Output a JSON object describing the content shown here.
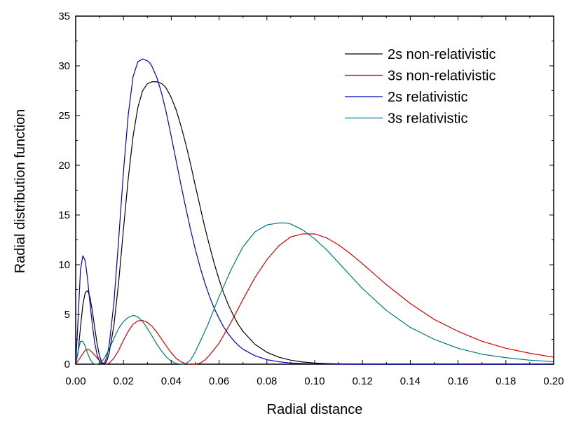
{
  "chart_data": {
    "type": "line",
    "title": "",
    "xlabel": "Radial distance",
    "ylabel": "Radial distribution function",
    "xlim": [
      0.0,
      0.2
    ],
    "ylim": [
      0,
      35
    ],
    "grid": false,
    "legend_position": "top-right",
    "x_ticks": [
      "0.00",
      "0.02",
      "0.04",
      "0.06",
      "0.08",
      "0.10",
      "0.12",
      "0.14",
      "0.16",
      "0.18",
      "0.20"
    ],
    "y_ticks": [
      "0",
      "5",
      "10",
      "15",
      "20",
      "25",
      "30",
      "35"
    ],
    "series": [
      {
        "name": "2s non-relativistic",
        "color": "#000000",
        "x": [
          0.0,
          0.001,
          0.002,
          0.003,
          0.004,
          0.005,
          0.006,
          0.007,
          0.008,
          0.009,
          0.01,
          0.011,
          0.012,
          0.013,
          0.014,
          0.016,
          0.018,
          0.02,
          0.022,
          0.024,
          0.026,
          0.028,
          0.03,
          0.032,
          0.034,
          0.036,
          0.037,
          0.038,
          0.04,
          0.042,
          0.044,
          0.046,
          0.048,
          0.05,
          0.052,
          0.054,
          0.056,
          0.058,
          0.06,
          0.062,
          0.064,
          0.066,
          0.068,
          0.07,
          0.075,
          0.08,
          0.085,
          0.09,
          0.095,
          0.1,
          0.105,
          0.11,
          0.115,
          0.12,
          0.13,
          0.14,
          0.16,
          0.18,
          0.2
        ],
        "y": [
          0.0,
          1.2,
          3.7,
          6.0,
          7.2,
          7.4,
          6.7,
          5.3,
          3.6,
          2.0,
          0.8,
          0.15,
          0.0,
          0.3,
          1.1,
          3.9,
          8.3,
          13.6,
          18.7,
          22.9,
          25.8,
          27.5,
          28.2,
          28.4,
          28.4,
          28.2,
          28.0,
          27.7,
          26.8,
          25.6,
          24.0,
          22.2,
          20.2,
          18.0,
          15.9,
          13.8,
          11.9,
          10.1,
          8.5,
          7.1,
          5.9,
          4.9,
          4.0,
          3.3,
          2.0,
          1.2,
          0.7,
          0.4,
          0.22,
          0.12,
          0.06,
          0.03,
          0.015,
          0.008,
          0.0,
          0.0,
          0.0,
          0.0,
          0.0
        ]
      },
      {
        "name": "3s non-relativistic",
        "color": "#d40000",
        "x": [
          0.0,
          0.002,
          0.004,
          0.005,
          0.006,
          0.008,
          0.01,
          0.012,
          0.013,
          0.014,
          0.016,
          0.018,
          0.02,
          0.022,
          0.024,
          0.026,
          0.028,
          0.03,
          0.032,
          0.034,
          0.036,
          0.038,
          0.04,
          0.042,
          0.044,
          0.046,
          0.048,
          0.05,
          0.052,
          0.054,
          0.056,
          0.06,
          0.065,
          0.07,
          0.075,
          0.08,
          0.085,
          0.09,
          0.095,
          0.1,
          0.105,
          0.11,
          0.115,
          0.12,
          0.13,
          0.14,
          0.15,
          0.16,
          0.17,
          0.18,
          0.19,
          0.2
        ],
        "y": [
          0.0,
          0.7,
          1.4,
          1.5,
          1.4,
          0.9,
          0.35,
          0.05,
          0.0,
          0.1,
          0.6,
          1.4,
          2.4,
          3.3,
          4.0,
          4.35,
          4.4,
          4.2,
          3.8,
          3.2,
          2.5,
          1.8,
          1.15,
          0.6,
          0.25,
          0.05,
          0.0,
          0.0,
          0.1,
          0.4,
          0.9,
          2.1,
          4.2,
          6.5,
          8.7,
          10.5,
          11.9,
          12.8,
          13.1,
          13.1,
          12.7,
          12.0,
          11.1,
          10.1,
          8.0,
          6.1,
          4.5,
          3.3,
          2.3,
          1.6,
          1.1,
          0.7
        ]
      },
      {
        "name": "2s relativistic",
        "color": "#0000c0",
        "x": [
          0.0,
          0.001,
          0.002,
          0.003,
          0.004,
          0.005,
          0.006,
          0.007,
          0.008,
          0.009,
          0.01,
          0.011,
          0.012,
          0.013,
          0.014,
          0.016,
          0.018,
          0.02,
          0.022,
          0.024,
          0.026,
          0.028,
          0.03,
          0.031,
          0.032,
          0.034,
          0.036,
          0.038,
          0.04,
          0.042,
          0.044,
          0.046,
          0.048,
          0.05,
          0.052,
          0.054,
          0.056,
          0.058,
          0.06,
          0.062,
          0.064,
          0.066,
          0.068,
          0.07,
          0.075,
          0.08,
          0.085,
          0.09,
          0.095,
          0.1,
          0.11,
          0.12,
          0.14,
          0.16,
          0.2
        ],
        "y": [
          0.0,
          4.5,
          9.5,
          10.9,
          10.4,
          8.5,
          6.1,
          3.9,
          2.1,
          0.9,
          0.25,
          0.0,
          0.1,
          0.7,
          1.9,
          6.2,
          12.6,
          19.4,
          25.1,
          28.9,
          30.4,
          30.7,
          30.5,
          30.3,
          29.9,
          28.8,
          27.2,
          25.2,
          22.9,
          20.5,
          18.1,
          15.8,
          13.6,
          11.6,
          9.8,
          8.2,
          6.8,
          5.6,
          4.6,
          3.7,
          3.0,
          2.4,
          1.9,
          1.5,
          0.85,
          0.45,
          0.24,
          0.12,
          0.06,
          0.03,
          0.008,
          0.0,
          0.0,
          0.0,
          0.0
        ]
      },
      {
        "name": "3s relativistic",
        "color": "#007878",
        "x": [
          0.0,
          0.001,
          0.002,
          0.003,
          0.004,
          0.005,
          0.006,
          0.007,
          0.008,
          0.009,
          0.01,
          0.011,
          0.012,
          0.014,
          0.016,
          0.018,
          0.02,
          0.022,
          0.024,
          0.025,
          0.026,
          0.028,
          0.03,
          0.032,
          0.034,
          0.036,
          0.038,
          0.04,
          0.042,
          0.044,
          0.045,
          0.046,
          0.048,
          0.05,
          0.055,
          0.06,
          0.065,
          0.07,
          0.075,
          0.08,
          0.085,
          0.088,
          0.09,
          0.095,
          0.1,
          0.105,
          0.11,
          0.115,
          0.12,
          0.13,
          0.14,
          0.15,
          0.16,
          0.17,
          0.18,
          0.19,
          0.2
        ],
        "y": [
          0.0,
          1.3,
          2.3,
          2.3,
          1.8,
          1.1,
          0.5,
          0.15,
          0.0,
          0.0,
          0.1,
          0.3,
          0.6,
          1.5,
          2.6,
          3.6,
          4.3,
          4.7,
          4.9,
          4.85,
          4.75,
          4.3,
          3.6,
          2.8,
          2.0,
          1.3,
          0.7,
          0.3,
          0.08,
          0.0,
          0.0,
          0.05,
          0.4,
          1.2,
          3.8,
          6.8,
          9.5,
          11.8,
          13.3,
          14.0,
          14.2,
          14.2,
          14.1,
          13.5,
          12.6,
          11.5,
          10.2,
          8.9,
          7.6,
          5.4,
          3.7,
          2.5,
          1.6,
          1.0,
          0.65,
          0.4,
          0.25
        ]
      }
    ]
  }
}
